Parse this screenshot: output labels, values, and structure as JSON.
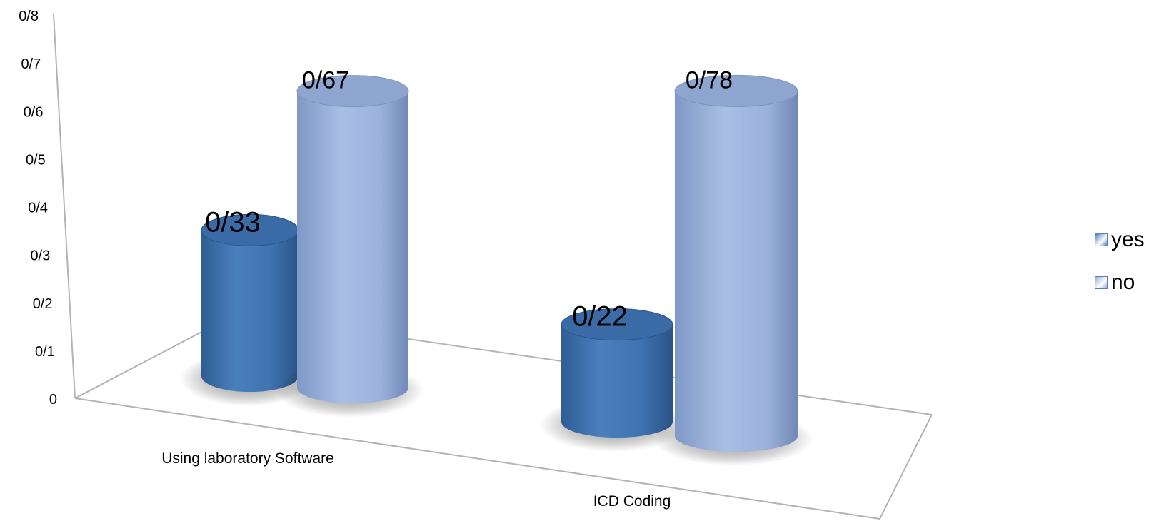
{
  "chart_data": {
    "type": "bar",
    "style": "3d-cylinder",
    "title": "",
    "xlabel": "",
    "ylabel": "",
    "categories": [
      "Using laboratory Software",
      "ICD Coding"
    ],
    "series": [
      {
        "name": "yes",
        "values": [
          0.33,
          0.22
        ],
        "labels": [
          "0/33",
          "0/22"
        ],
        "color": "#4f81bd"
      },
      {
        "name": "no",
        "values": [
          0.67,
          0.78
        ],
        "labels": [
          "0/67",
          "0/78"
        ],
        "color": "#95add6"
      }
    ],
    "ylim": [
      0,
      0.8
    ],
    "yticks": [
      "0",
      "0/1",
      "0/2",
      "0/3",
      "0/4",
      "0/5",
      "0/6",
      "0/7",
      "0/8"
    ],
    "grid": false,
    "legend": "right"
  }
}
